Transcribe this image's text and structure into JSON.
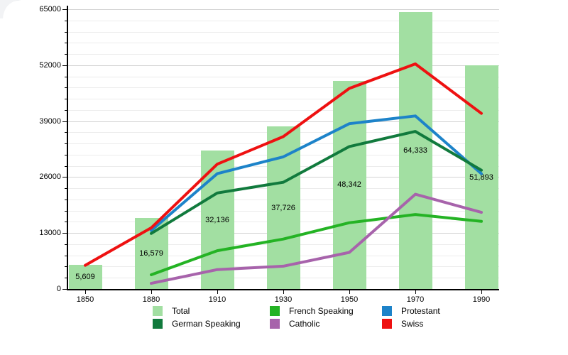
{
  "chart_data": {
    "type": "bar",
    "title": "",
    "xlabel": "",
    "ylabel": "",
    "categories": [
      "1850",
      "1880",
      "1910",
      "1930",
      "1950",
      "1970",
      "1990"
    ],
    "bars": {
      "name": "Total",
      "color": "#a2dfa2",
      "values": [
        5609,
        16579,
        32136,
        37726,
        48342,
        64333,
        51893
      ],
      "labels": [
        "5,609",
        "16,579",
        "32,136",
        "37,726",
        "48,342",
        "64,333",
        "51,893"
      ]
    },
    "series": [
      {
        "name": "French Speaking",
        "color": "#24b324",
        "values": [
          null,
          3300,
          8900,
          11600,
          15400,
          17300,
          15700
        ]
      },
      {
        "name": "Catholic",
        "color": "#a763ab",
        "values": [
          null,
          1300,
          4500,
          5300,
          8500,
          22000,
          17800
        ]
      },
      {
        "name": "Protestant",
        "color": "#1d83c9",
        "values": [
          null,
          13600,
          26800,
          30700,
          38400,
          40200,
          26800
        ]
      },
      {
        "name": "German Speaking",
        "color": "#117a3d",
        "values": [
          null,
          12900,
          22300,
          24800,
          33100,
          36600,
          27600
        ]
      },
      {
        "name": "Swiss",
        "color": "#ee1111",
        "values": [
          5500,
          14200,
          29000,
          35400,
          46600,
          52300,
          40800
        ]
      }
    ],
    "ylim": [
      0,
      65000
    ],
    "y_ticks": [
      "0",
      "13000",
      "26000",
      "39000",
      "52000",
      "65000"
    ],
    "y_major_step": 13000,
    "y_minor_step": 2600,
    "grid": true,
    "legend_position": "bottom"
  },
  "legend": {
    "columns": [
      {
        "items": [
          {
            "label": "Total",
            "color": "#a2dfa2"
          },
          {
            "label": "German Speaking",
            "color": "#117a3d"
          }
        ]
      },
      {
        "items": [
          {
            "label": "French Speaking",
            "color": "#24b324"
          },
          {
            "label": "Catholic",
            "color": "#a763ab"
          }
        ]
      },
      {
        "items": [
          {
            "label": "Protestant",
            "color": "#1d83c9"
          },
          {
            "label": "Swiss",
            "color": "#ee1111"
          }
        ]
      }
    ]
  }
}
